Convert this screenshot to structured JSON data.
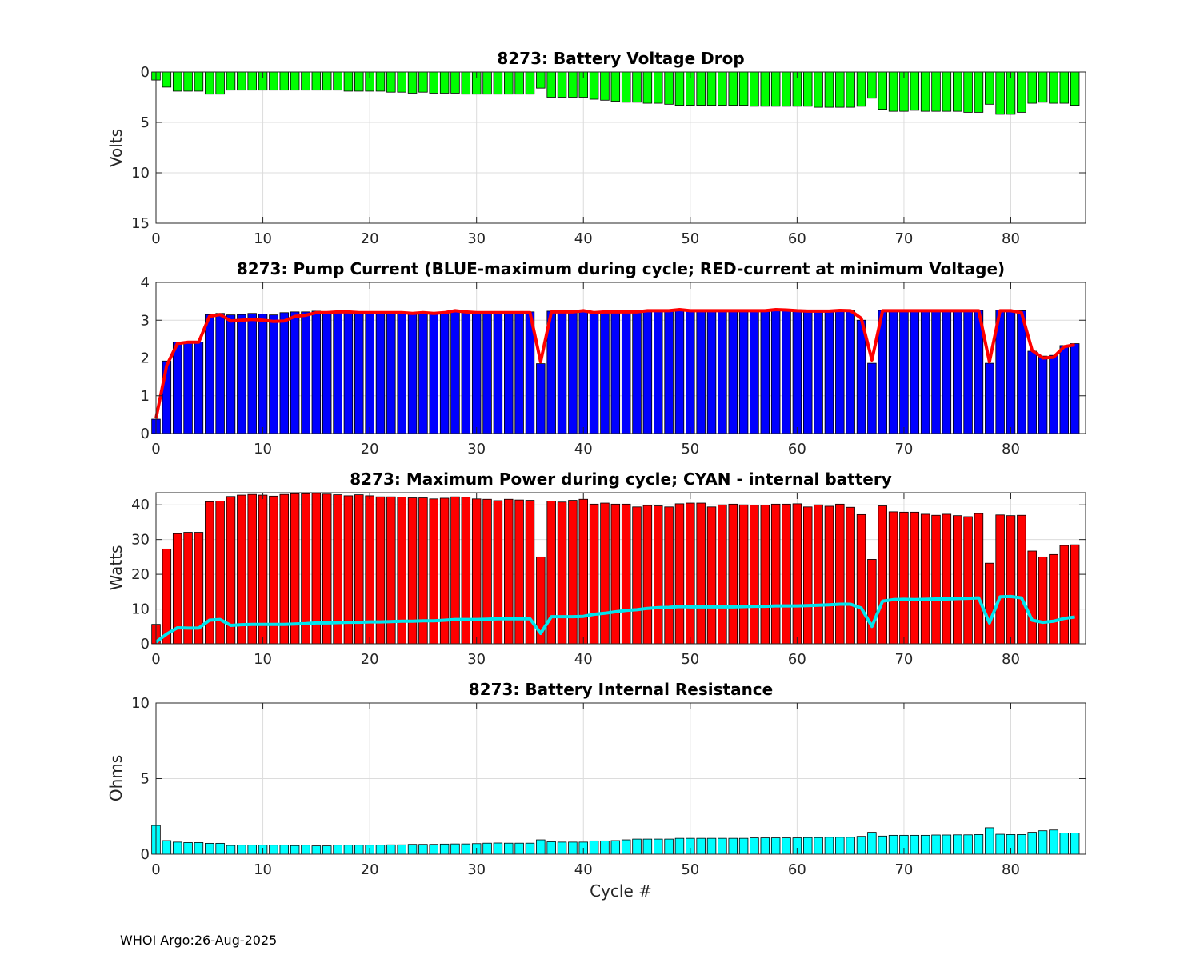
{
  "footer": "WHOI Argo:26-Aug-2025",
  "chart_data": [
    {
      "type": "bar",
      "title": "8273: Battery Voltage Drop",
      "ylabel": "Volts",
      "xlabel": "",
      "xlim": [
        0,
        87
      ],
      "ylim": [
        0,
        15
      ],
      "y_reversed": true,
      "xticks": [
        0,
        10,
        20,
        30,
        40,
        50,
        60,
        70,
        80
      ],
      "yticks": [
        0,
        5,
        10,
        15
      ],
      "grid": true,
      "bar_color": "#00ff00",
      "x": [
        0,
        1,
        2,
        3,
        4,
        5,
        6,
        7,
        8,
        9,
        10,
        11,
        12,
        13,
        14,
        15,
        16,
        17,
        18,
        19,
        20,
        21,
        22,
        23,
        24,
        25,
        26,
        27,
        28,
        29,
        30,
        31,
        32,
        33,
        34,
        35,
        36,
        37,
        38,
        39,
        40,
        41,
        42,
        43,
        44,
        45,
        46,
        47,
        48,
        49,
        50,
        51,
        52,
        53,
        54,
        55,
        56,
        57,
        58,
        59,
        60,
        61,
        62,
        63,
        64,
        65,
        66,
        67,
        68,
        69,
        70,
        71,
        72,
        73,
        74,
        75,
        76,
        77,
        78,
        79,
        80,
        81,
        82,
        83,
        84,
        85,
        86
      ],
      "values": [
        0.8,
        1.5,
        1.9,
        1.9,
        1.9,
        2.2,
        2.2,
        1.8,
        1.8,
        1.8,
        1.8,
        1.8,
        1.8,
        1.8,
        1.8,
        1.8,
        1.8,
        1.8,
        1.9,
        1.9,
        1.9,
        1.9,
        2.0,
        2.0,
        2.1,
        2.0,
        2.1,
        2.1,
        2.1,
        2.2,
        2.2,
        2.2,
        2.2,
        2.2,
        2.2,
        2.2,
        1.6,
        2.5,
        2.5,
        2.5,
        2.5,
        2.7,
        2.8,
        2.9,
        3.0,
        3.0,
        3.1,
        3.1,
        3.2,
        3.3,
        3.3,
        3.3,
        3.3,
        3.3,
        3.3,
        3.3,
        3.4,
        3.4,
        3.4,
        3.4,
        3.4,
        3.4,
        3.5,
        3.5,
        3.5,
        3.5,
        3.4,
        2.6,
        3.7,
        3.9,
        3.9,
        3.8,
        3.9,
        3.9,
        3.9,
        3.9,
        4.0,
        4.0,
        3.2,
        4.2,
        4.2,
        4.0,
        3.1,
        3.0,
        3.1,
        3.1,
        3.3
      ]
    },
    {
      "type": "bar+line",
      "title": "8273: Pump Current (BLUE-maximum during cycle; RED-current at minimum Voltage)",
      "ylabel": "",
      "xlabel": "",
      "xlim": [
        0,
        87
      ],
      "ylim": [
        0,
        4
      ],
      "xticks": [
        0,
        10,
        20,
        30,
        40,
        50,
        60,
        70,
        80
      ],
      "yticks": [
        0,
        1,
        2,
        3,
        4
      ],
      "grid": true,
      "bar_color": "#0000ff",
      "line_color": "#ff0000",
      "x": [
        0,
        1,
        2,
        3,
        4,
        5,
        6,
        7,
        8,
        9,
        10,
        11,
        12,
        13,
        14,
        15,
        16,
        17,
        18,
        19,
        20,
        21,
        22,
        23,
        24,
        25,
        26,
        27,
        28,
        29,
        30,
        31,
        32,
        33,
        34,
        35,
        36,
        37,
        38,
        39,
        40,
        41,
        42,
        43,
        44,
        45,
        46,
        47,
        48,
        49,
        50,
        51,
        52,
        53,
        54,
        55,
        56,
        57,
        58,
        59,
        60,
        61,
        62,
        63,
        64,
        65,
        66,
        67,
        68,
        69,
        70,
        71,
        72,
        73,
        74,
        75,
        76,
        77,
        78,
        79,
        80,
        81,
        82,
        83,
        84,
        85,
        86
      ],
      "series": [
        {
          "name": "BLUE-maximum during cycle",
          "values": [
            0.38,
            1.92,
            2.42,
            2.43,
            2.42,
            3.15,
            3.18,
            3.14,
            3.15,
            3.18,
            3.16,
            3.14,
            3.2,
            3.22,
            3.22,
            3.24,
            3.23,
            3.22,
            3.22,
            3.21,
            3.2,
            3.2,
            3.2,
            3.19,
            3.19,
            3.19,
            3.18,
            3.22,
            3.24,
            3.23,
            3.2,
            3.2,
            3.22,
            3.23,
            3.23,
            3.22,
            1.85,
            3.24,
            3.24,
            3.24,
            3.24,
            3.19,
            3.2,
            3.22,
            3.22,
            3.21,
            3.26,
            3.26,
            3.27,
            3.27,
            3.27,
            3.26,
            3.26,
            3.26,
            3.26,
            3.26,
            3.26,
            3.26,
            3.28,
            3.26,
            3.26,
            3.25,
            3.24,
            3.25,
            3.26,
            3.25,
            3.0,
            1.86,
            3.26,
            3.26,
            3.26,
            3.26,
            3.26,
            3.26,
            3.26,
            3.26,
            3.26,
            3.26,
            1.86,
            3.27,
            3.27,
            3.25,
            2.18,
            2.05,
            2.07,
            2.33,
            2.38
          ]
        },
        {
          "name": "RED-current at minimum Voltage",
          "values": [
            0.4,
            1.8,
            2.38,
            2.42,
            2.42,
            3.1,
            3.15,
            2.98,
            3.0,
            3.02,
            3.0,
            2.97,
            2.98,
            3.1,
            3.13,
            3.2,
            3.2,
            3.22,
            3.22,
            3.2,
            3.2,
            3.2,
            3.2,
            3.2,
            3.18,
            3.2,
            3.18,
            3.2,
            3.25,
            3.22,
            3.2,
            3.2,
            3.2,
            3.2,
            3.2,
            3.2,
            1.9,
            3.22,
            3.22,
            3.22,
            3.25,
            3.2,
            3.22,
            3.22,
            3.22,
            3.22,
            3.25,
            3.25,
            3.25,
            3.28,
            3.25,
            3.25,
            3.25,
            3.25,
            3.25,
            3.25,
            3.25,
            3.25,
            3.28,
            3.27,
            3.25,
            3.24,
            3.24,
            3.24,
            3.26,
            3.25,
            3.05,
            1.95,
            3.25,
            3.25,
            3.25,
            3.25,
            3.25,
            3.25,
            3.25,
            3.25,
            3.25,
            3.25,
            1.9,
            3.25,
            3.25,
            3.2,
            2.2,
            2.0,
            2.02,
            2.3,
            2.35
          ]
        }
      ]
    },
    {
      "type": "bar+line",
      "title": "8273: Maximum Power during cycle; CYAN - internal battery",
      "ylabel": "Watts",
      "xlabel": "",
      "xlim": [
        0,
        87
      ],
      "ylim": [
        0,
        43.5
      ],
      "xticks": [
        0,
        10,
        20,
        30,
        40,
        50,
        60,
        70,
        80
      ],
      "yticks": [
        0,
        10,
        20,
        30,
        40
      ],
      "grid": true,
      "bar_color": "#ff0000",
      "line_color": "#00e5ee",
      "x": [
        0,
        1,
        2,
        3,
        4,
        5,
        6,
        7,
        8,
        9,
        10,
        11,
        12,
        13,
        14,
        15,
        16,
        17,
        18,
        19,
        20,
        21,
        22,
        23,
        24,
        25,
        26,
        27,
        28,
        29,
        30,
        31,
        32,
        33,
        34,
        35,
        36,
        37,
        38,
        39,
        40,
        41,
        42,
        43,
        44,
        45,
        46,
        47,
        48,
        49,
        50,
        51,
        52,
        53,
        54,
        55,
        56,
        57,
        58,
        59,
        60,
        61,
        62,
        63,
        64,
        65,
        66,
        67,
        68,
        69,
        70,
        71,
        72,
        73,
        74,
        75,
        76,
        77,
        78,
        79,
        80,
        81,
        82,
        83,
        84,
        85,
        86
      ],
      "series": [
        {
          "name": "Maximum Power during cycle",
          "values": [
            5.6,
            27.3,
            31.7,
            32.1,
            32.1,
            40.9,
            41.1,
            42.4,
            42.8,
            43.0,
            42.8,
            42.5,
            43.0,
            43.2,
            43.2,
            43.3,
            43.1,
            42.9,
            42.6,
            42.9,
            42.6,
            42.3,
            42.3,
            42.2,
            42.0,
            42.0,
            41.7,
            41.9,
            42.3,
            42.2,
            41.7,
            41.6,
            41.2,
            41.6,
            41.4,
            41.3,
            25.0,
            41.1,
            40.8,
            41.3,
            41.6,
            40.2,
            40.5,
            40.2,
            40.2,
            39.4,
            39.8,
            39.7,
            39.4,
            40.3,
            40.5,
            40.5,
            39.4,
            40.0,
            40.2,
            40.0,
            39.9,
            39.9,
            40.2,
            40.2,
            40.3,
            39.4,
            40.0,
            39.6,
            40.2,
            39.3,
            37.2,
            24.3,
            39.7,
            38.0,
            37.9,
            37.9,
            37.3,
            37.0,
            37.3,
            36.9,
            36.6,
            37.5,
            23.2,
            37.1,
            36.9,
            37.0,
            26.7,
            25.0,
            25.7,
            28.3,
            28.5
          ]
        },
        {
          "name": "CYAN - internal battery",
          "values": [
            0.5,
            2.8,
            4.6,
            4.5,
            4.5,
            6.8,
            7.0,
            5.3,
            5.5,
            5.6,
            5.6,
            5.6,
            5.6,
            5.7,
            5.8,
            6.0,
            6.0,
            6.1,
            6.2,
            6.2,
            6.3,
            6.3,
            6.4,
            6.5,
            6.5,
            6.6,
            6.6,
            6.8,
            7.0,
            7.0,
            7.0,
            7.1,
            7.2,
            7.2,
            7.2,
            7.2,
            3.0,
            7.8,
            7.8,
            7.8,
            7.9,
            8.5,
            8.8,
            9.2,
            9.6,
            9.8,
            10.2,
            10.4,
            10.5,
            10.7,
            10.6,
            10.6,
            10.6,
            10.6,
            10.6,
            10.7,
            10.8,
            10.8,
            10.9,
            10.9,
            10.9,
            11.0,
            11.1,
            11.2,
            11.4,
            11.4,
            10.3,
            5.0,
            12.3,
            12.7,
            12.8,
            12.7,
            12.8,
            12.9,
            12.9,
            13.0,
            13.1,
            13.2,
            6.0,
            13.5,
            13.6,
            13.2,
            6.8,
            6.2,
            6.5,
            7.3,
            7.7
          ]
        }
      ]
    },
    {
      "type": "bar",
      "title": "8273: Battery Internal Resistance",
      "ylabel": "Ohms",
      "xlabel": "Cycle #",
      "xlim": [
        0,
        87
      ],
      "ylim": [
        0,
        10
      ],
      "xticks": [
        0,
        10,
        20,
        30,
        40,
        50,
        60,
        70,
        80
      ],
      "yticks": [
        0,
        5,
        10
      ],
      "grid": true,
      "bar_color": "#00ffff",
      "x": [
        0,
        1,
        2,
        3,
        4,
        5,
        6,
        7,
        8,
        9,
        10,
        11,
        12,
        13,
        14,
        15,
        16,
        17,
        18,
        19,
        20,
        21,
        22,
        23,
        24,
        25,
        26,
        27,
        28,
        29,
        30,
        31,
        32,
        33,
        34,
        35,
        36,
        37,
        38,
        39,
        40,
        41,
        42,
        43,
        44,
        45,
        46,
        47,
        48,
        49,
        50,
        51,
        52,
        53,
        54,
        55,
        56,
        57,
        58,
        59,
        60,
        61,
        62,
        63,
        64,
        65,
        66,
        67,
        68,
        69,
        70,
        71,
        72,
        73,
        74,
        75,
        76,
        77,
        78,
        79,
        80,
        81,
        82,
        83,
        84,
        85,
        86
      ],
      "values": [
        1.9,
        0.9,
        0.8,
        0.77,
        0.77,
        0.72,
        0.72,
        0.58,
        0.6,
        0.6,
        0.6,
        0.6,
        0.6,
        0.57,
        0.6,
        0.55,
        0.55,
        0.6,
        0.6,
        0.6,
        0.6,
        0.6,
        0.62,
        0.62,
        0.65,
        0.65,
        0.65,
        0.67,
        0.68,
        0.68,
        0.7,
        0.73,
        0.74,
        0.73,
        0.73,
        0.73,
        0.95,
        0.82,
        0.8,
        0.8,
        0.8,
        0.88,
        0.88,
        0.9,
        0.95,
        1.0,
        1.0,
        1.0,
        1.0,
        1.05,
        1.05,
        1.05,
        1.05,
        1.05,
        1.05,
        1.05,
        1.08,
        1.08,
        1.08,
        1.08,
        1.08,
        1.1,
        1.1,
        1.12,
        1.12,
        1.12,
        1.18,
        1.45,
        1.2,
        1.25,
        1.25,
        1.25,
        1.25,
        1.27,
        1.27,
        1.28,
        1.28,
        1.3,
        1.75,
        1.32,
        1.3,
        1.3,
        1.45,
        1.55,
        1.6,
        1.4,
        1.4
      ]
    }
  ]
}
